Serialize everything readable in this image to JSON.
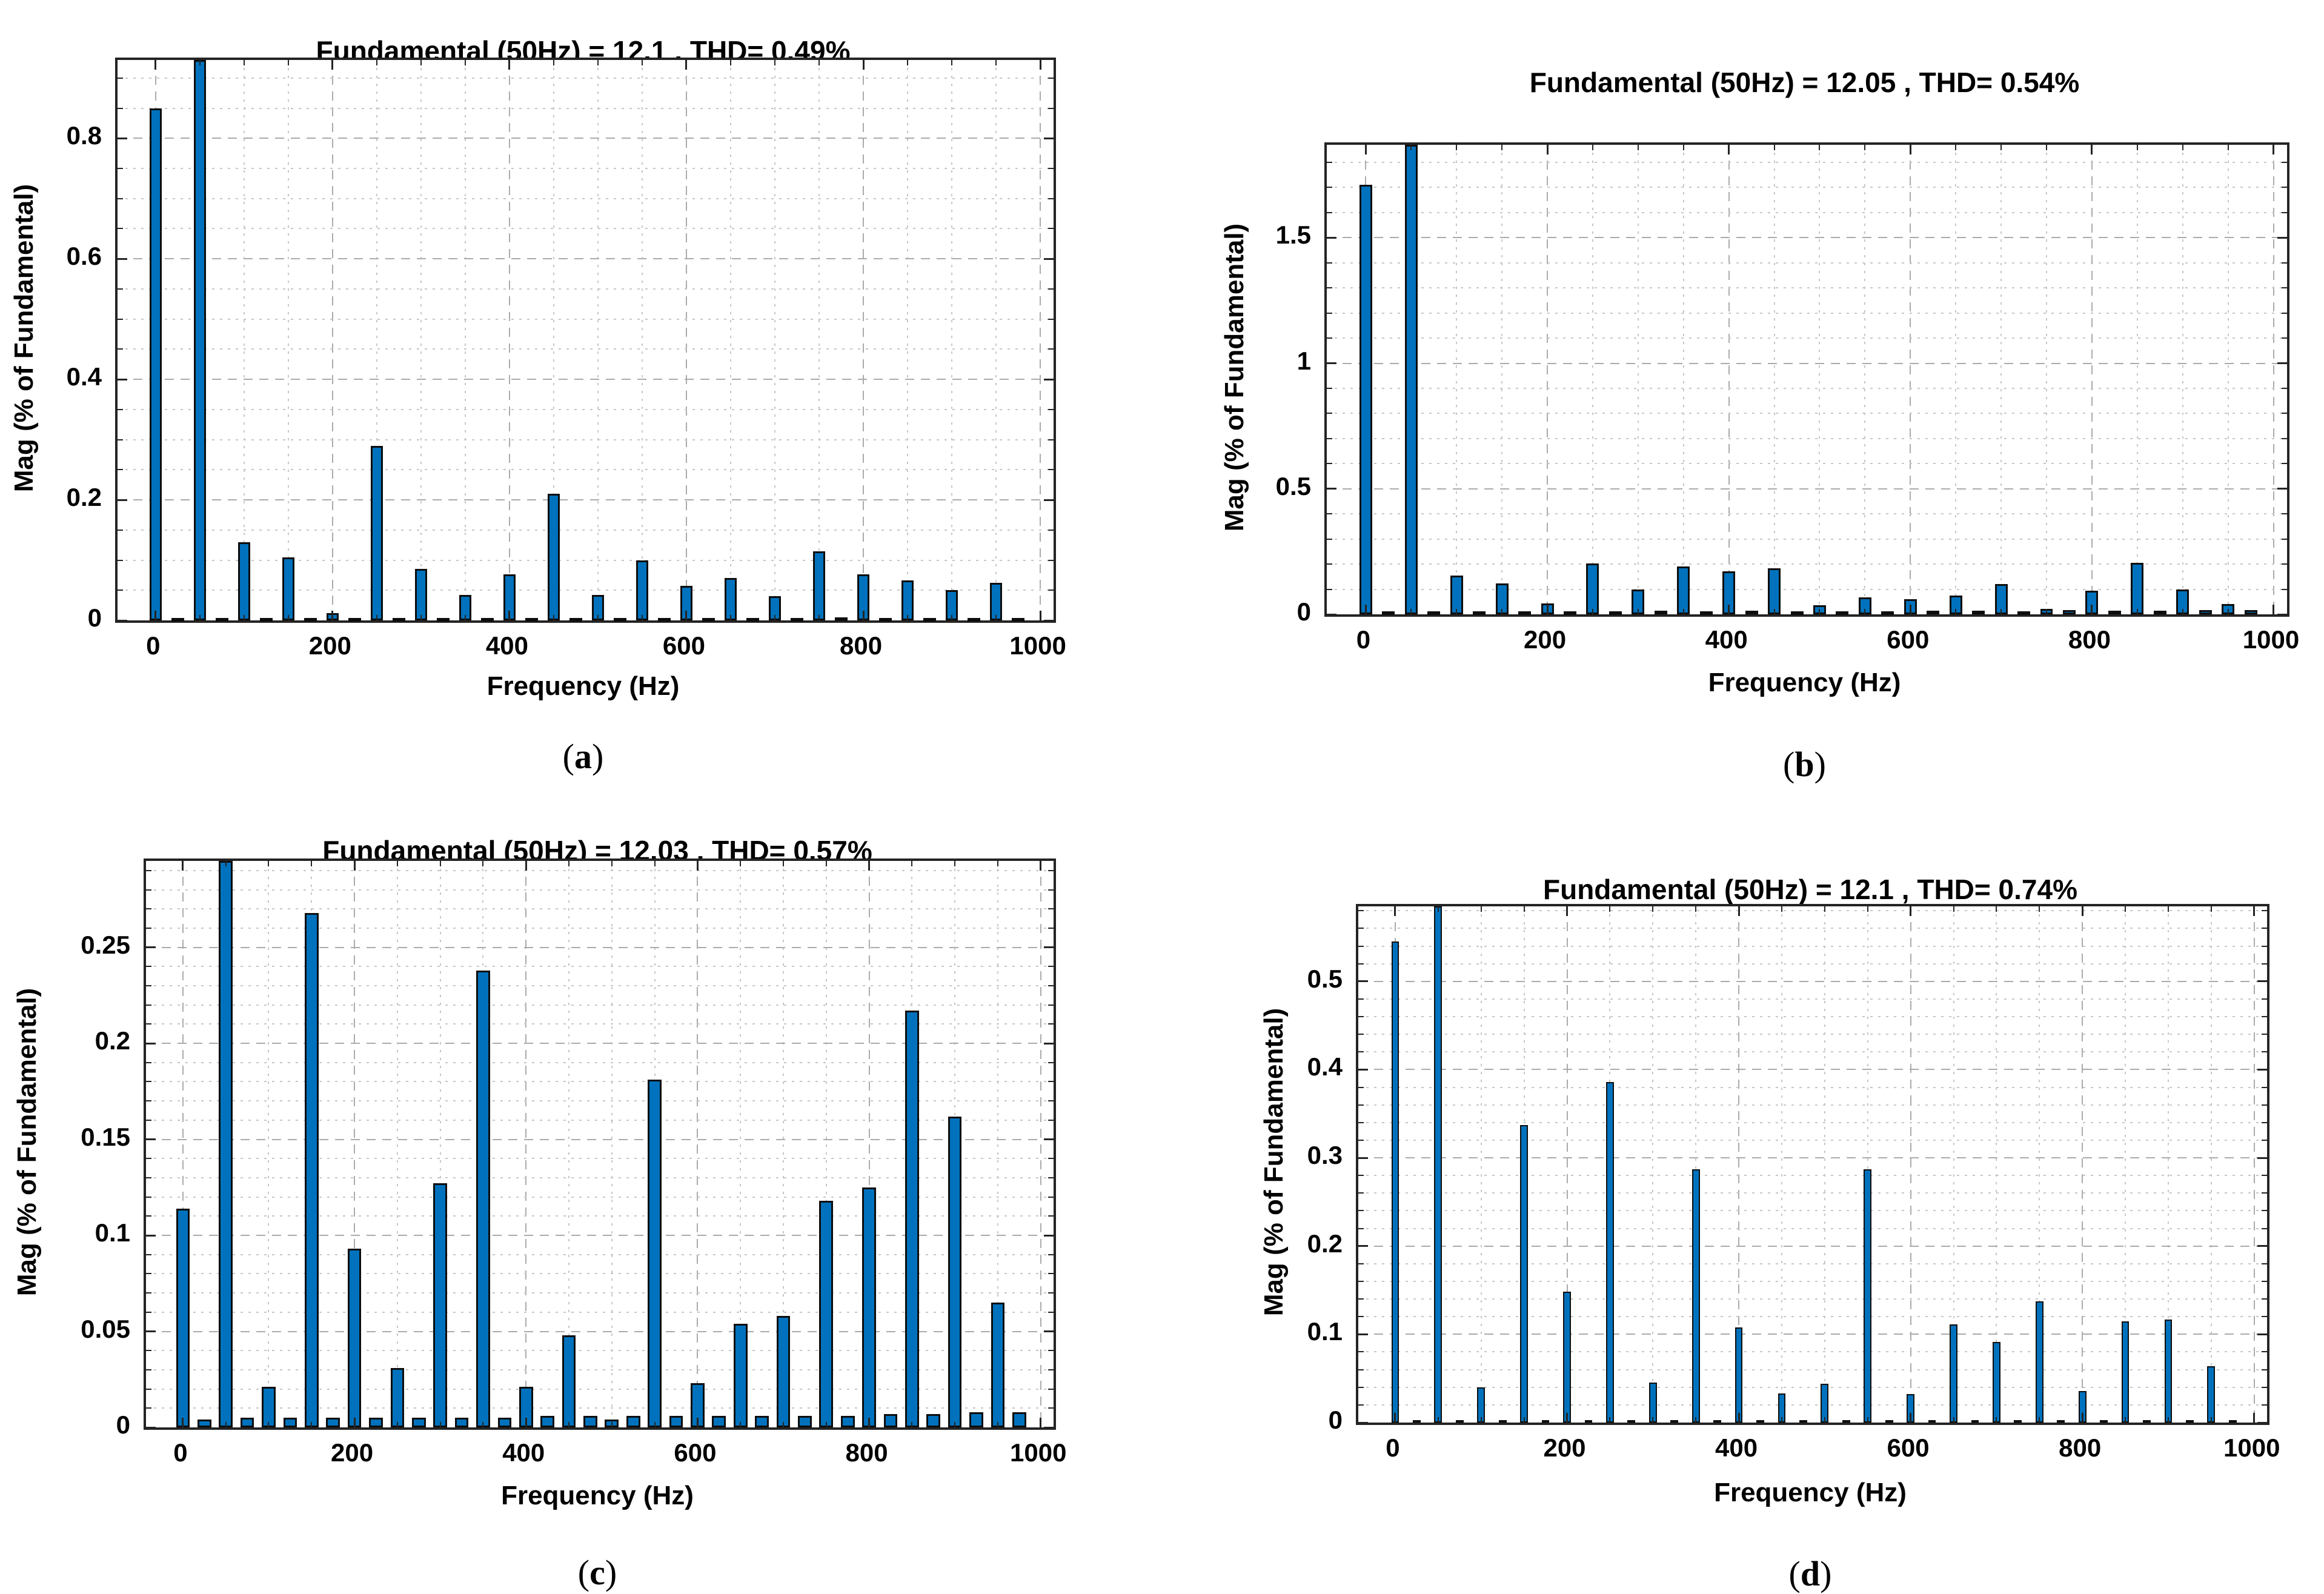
{
  "colors": {
    "bar_fill": "#0072BD",
    "bar_edge": "#0D0D0D",
    "axis_box": "#242424",
    "grid_minor": "#C7C7C7",
    "grid_major": "#ABABAB",
    "background": "#FFFFFF",
    "text": "#000000"
  },
  "chart_data": [
    {
      "panel_id": "a",
      "type": "bar",
      "caption": {
        "open": "(",
        "letter": "a",
        "close": ")"
      },
      "title": "Fundamental (50Hz) = 12.1 , THD= 0.49%",
      "fundamental_hz": 50,
      "fundamental_value": 12.1,
      "thd_percent": 0.49,
      "xlabel": "Frequency (Hz)",
      "ylabel": "Mag (% of Fundamental)",
      "xlim": [
        -43,
        1015
      ],
      "ylim": [
        0,
        0.93
      ],
      "xticks": [
        0,
        200,
        400,
        600,
        800,
        1000
      ],
      "xtick_labels": [
        "0",
        "200",
        "400",
        "600",
        "800",
        "1000"
      ],
      "yticks": [
        0,
        0.2,
        0.4,
        0.6,
        0.8
      ],
      "ytick_labels": [
        "0",
        "0.2",
        "0.4",
        "0.6",
        "0.8"
      ],
      "x_minor_step_hz": 50,
      "y_minor_step": 0.05,
      "bar_width_hz": 14,
      "grid": "on",
      "note": "bar at 50 Hz is the fundamental (100%) and is clipped by the axis top",
      "x_hz": [
        0,
        25,
        50,
        75,
        100,
        125,
        150,
        175,
        200,
        225,
        250,
        275,
        300,
        325,
        350,
        375,
        400,
        425,
        450,
        475,
        500,
        525,
        550,
        575,
        600,
        625,
        650,
        675,
        700,
        725,
        750,
        775,
        800,
        825,
        850,
        875,
        900,
        925,
        950,
        975
      ],
      "values_pct": [
        0.85,
        0.004,
        100,
        0.004,
        0.13,
        0.004,
        0.105,
        0.004,
        0.012,
        0.004,
        0.29,
        0.004,
        0.085,
        0.004,
        0.042,
        0.004,
        0.076,
        0.004,
        0.21,
        0.004,
        0.042,
        0.004,
        0.1,
        0.004,
        0.057,
        0.004,
        0.07,
        0.004,
        0.04,
        0.004,
        0.115,
        0.005,
        0.076,
        0.004,
        0.066,
        0.004,
        0.05,
        0.004,
        0.062,
        0.004
      ]
    },
    {
      "panel_id": "b",
      "type": "bar",
      "caption": {
        "open": "(",
        "letter": "b",
        "close": ")"
      },
      "title": "Fundamental (50Hz) = 12.05 , THD= 0.54%",
      "fundamental_hz": 50,
      "fundamental_value": 12.05,
      "thd_percent": 0.54,
      "xlabel": "Frequency (Hz)",
      "ylabel": "Mag (% of Fundamental)",
      "xlim": [
        -43,
        1015
      ],
      "ylim": [
        0,
        1.87
      ],
      "xticks": [
        0,
        200,
        400,
        600,
        800,
        1000
      ],
      "xtick_labels": [
        "0",
        "200",
        "400",
        "600",
        "800",
        "1000"
      ],
      "yticks": [
        0,
        0.5,
        1,
        1.5
      ],
      "ytick_labels": [
        "0",
        "0.5",
        "1",
        "1.5"
      ],
      "x_minor_step_hz": 50,
      "y_minor_step": 0.1,
      "bar_width_hz": 14,
      "grid": "on",
      "note": "bar at 50 Hz is the fundamental (100%) and is clipped by the axis top",
      "x_hz": [
        0,
        25,
        50,
        75,
        100,
        125,
        150,
        175,
        200,
        225,
        250,
        275,
        300,
        325,
        350,
        375,
        400,
        425,
        450,
        475,
        500,
        525,
        550,
        575,
        600,
        625,
        650,
        675,
        700,
        725,
        750,
        775,
        800,
        825,
        850,
        875,
        900,
        925,
        950,
        975
      ],
      "values_pct": [
        1.71,
        0.012,
        100,
        0.012,
        0.155,
        0.012,
        0.123,
        0.012,
        0.044,
        0.012,
        0.202,
        0.012,
        0.1,
        0.015,
        0.19,
        0.012,
        0.171,
        0.015,
        0.183,
        0.012,
        0.035,
        0.012,
        0.068,
        0.012,
        0.06,
        0.014,
        0.075,
        0.014,
        0.12,
        0.012,
        0.022,
        0.016,
        0.095,
        0.014,
        0.205,
        0.014,
        0.1,
        0.016,
        0.042,
        0.016
      ]
    },
    {
      "panel_id": "c",
      "type": "bar",
      "caption": {
        "open": "(",
        "letter": "c",
        "close": ")"
      },
      "title": "Fundamental (50Hz) = 12.03 , THD= 0.57%",
      "fundamental_hz": 50,
      "fundamental_value": 12.03,
      "thd_percent": 0.57,
      "xlabel": "Frequency (Hz)",
      "ylabel": "Mag (% of Fundamental)",
      "xlim": [
        -43,
        1015
      ],
      "ylim": [
        0,
        0.295
      ],
      "xticks": [
        0,
        200,
        400,
        600,
        800,
        1000
      ],
      "xtick_labels": [
        "0",
        "200",
        "400",
        "600",
        "800",
        "1000"
      ],
      "yticks": [
        0,
        0.05,
        0.1,
        0.15,
        0.2,
        0.25
      ],
      "ytick_labels": [
        "0",
        "0.05",
        "0.1",
        "0.15",
        "0.2",
        "0.25"
      ],
      "x_minor_step_hz": 50,
      "y_minor_step": 0.01,
      "bar_width_hz": 16,
      "grid": "on",
      "note": "bar at 50 Hz is the fundamental (100%) and is clipped by the axis top",
      "x_hz": [
        0,
        25,
        50,
        75,
        100,
        125,
        150,
        175,
        200,
        225,
        250,
        275,
        300,
        325,
        350,
        375,
        400,
        425,
        450,
        475,
        500,
        525,
        550,
        575,
        600,
        625,
        650,
        675,
        700,
        725,
        750,
        775,
        800,
        825,
        850,
        875,
        900,
        925,
        950,
        975
      ],
      "values_pct": [
        0.114,
        0.004,
        100,
        0.005,
        0.021,
        0.005,
        0.268,
        0.005,
        0.093,
        0.005,
        0.031,
        0.005,
        0.127,
        0.005,
        0.238,
        0.005,
        0.021,
        0.006,
        0.048,
        0.006,
        0.004,
        0.006,
        0.181,
        0.006,
        0.023,
        0.006,
        0.054,
        0.006,
        0.058,
        0.006,
        0.118,
        0.006,
        0.125,
        0.007,
        0.217,
        0.007,
        0.162,
        0.008,
        0.065,
        0.008
      ]
    },
    {
      "panel_id": "d",
      "type": "bar",
      "caption": {
        "open": "(",
        "letter": "d",
        "close": ")"
      },
      "title": "Fundamental (50Hz) = 12.1 , THD= 0.74%",
      "fundamental_hz": 50,
      "fundamental_value": 12.1,
      "thd_percent": 0.74,
      "xlabel": "Frequency (Hz)",
      "ylabel": "Mag (% of Fundamental)",
      "xlim": [
        -43,
        1015
      ],
      "ylim": [
        0,
        0.585
      ],
      "xticks": [
        0,
        200,
        400,
        600,
        800,
        1000
      ],
      "xtick_labels": [
        "0",
        "200",
        "400",
        "600",
        "800",
        "1000"
      ],
      "yticks": [
        0,
        0.1,
        0.2,
        0.3,
        0.4,
        0.5
      ],
      "ytick_labels": [
        "0",
        "0.1",
        "0.2",
        "0.3",
        "0.4",
        "0.5"
      ],
      "x_minor_step_hz": 50,
      "y_minor_step": 0.02,
      "bar_width_hz": 9,
      "grid": "on",
      "note": "bar at 50 Hz is the fundamental (100%) and is clipped by the axis top",
      "x_hz": [
        0,
        25,
        50,
        75,
        100,
        125,
        150,
        175,
        200,
        225,
        250,
        275,
        300,
        325,
        350,
        375,
        400,
        425,
        450,
        475,
        500,
        525,
        550,
        575,
        600,
        625,
        650,
        675,
        700,
        725,
        750,
        775,
        800,
        825,
        850,
        875,
        900,
        925,
        950,
        975
      ],
      "values_pct": [
        0.545,
        0.003,
        100,
        0.003,
        0.04,
        0.003,
        0.337,
        0.003,
        0.148,
        0.003,
        0.386,
        0.003,
        0.045,
        0.003,
        0.287,
        0.003,
        0.108,
        0.003,
        0.033,
        0.003,
        0.044,
        0.003,
        0.287,
        0.003,
        0.032,
        0.003,
        0.111,
        0.003,
        0.091,
        0.003,
        0.137,
        0.003,
        0.036,
        0.003,
        0.115,
        0.003,
        0.117,
        0.003,
        0.064,
        0.003
      ]
    }
  ]
}
